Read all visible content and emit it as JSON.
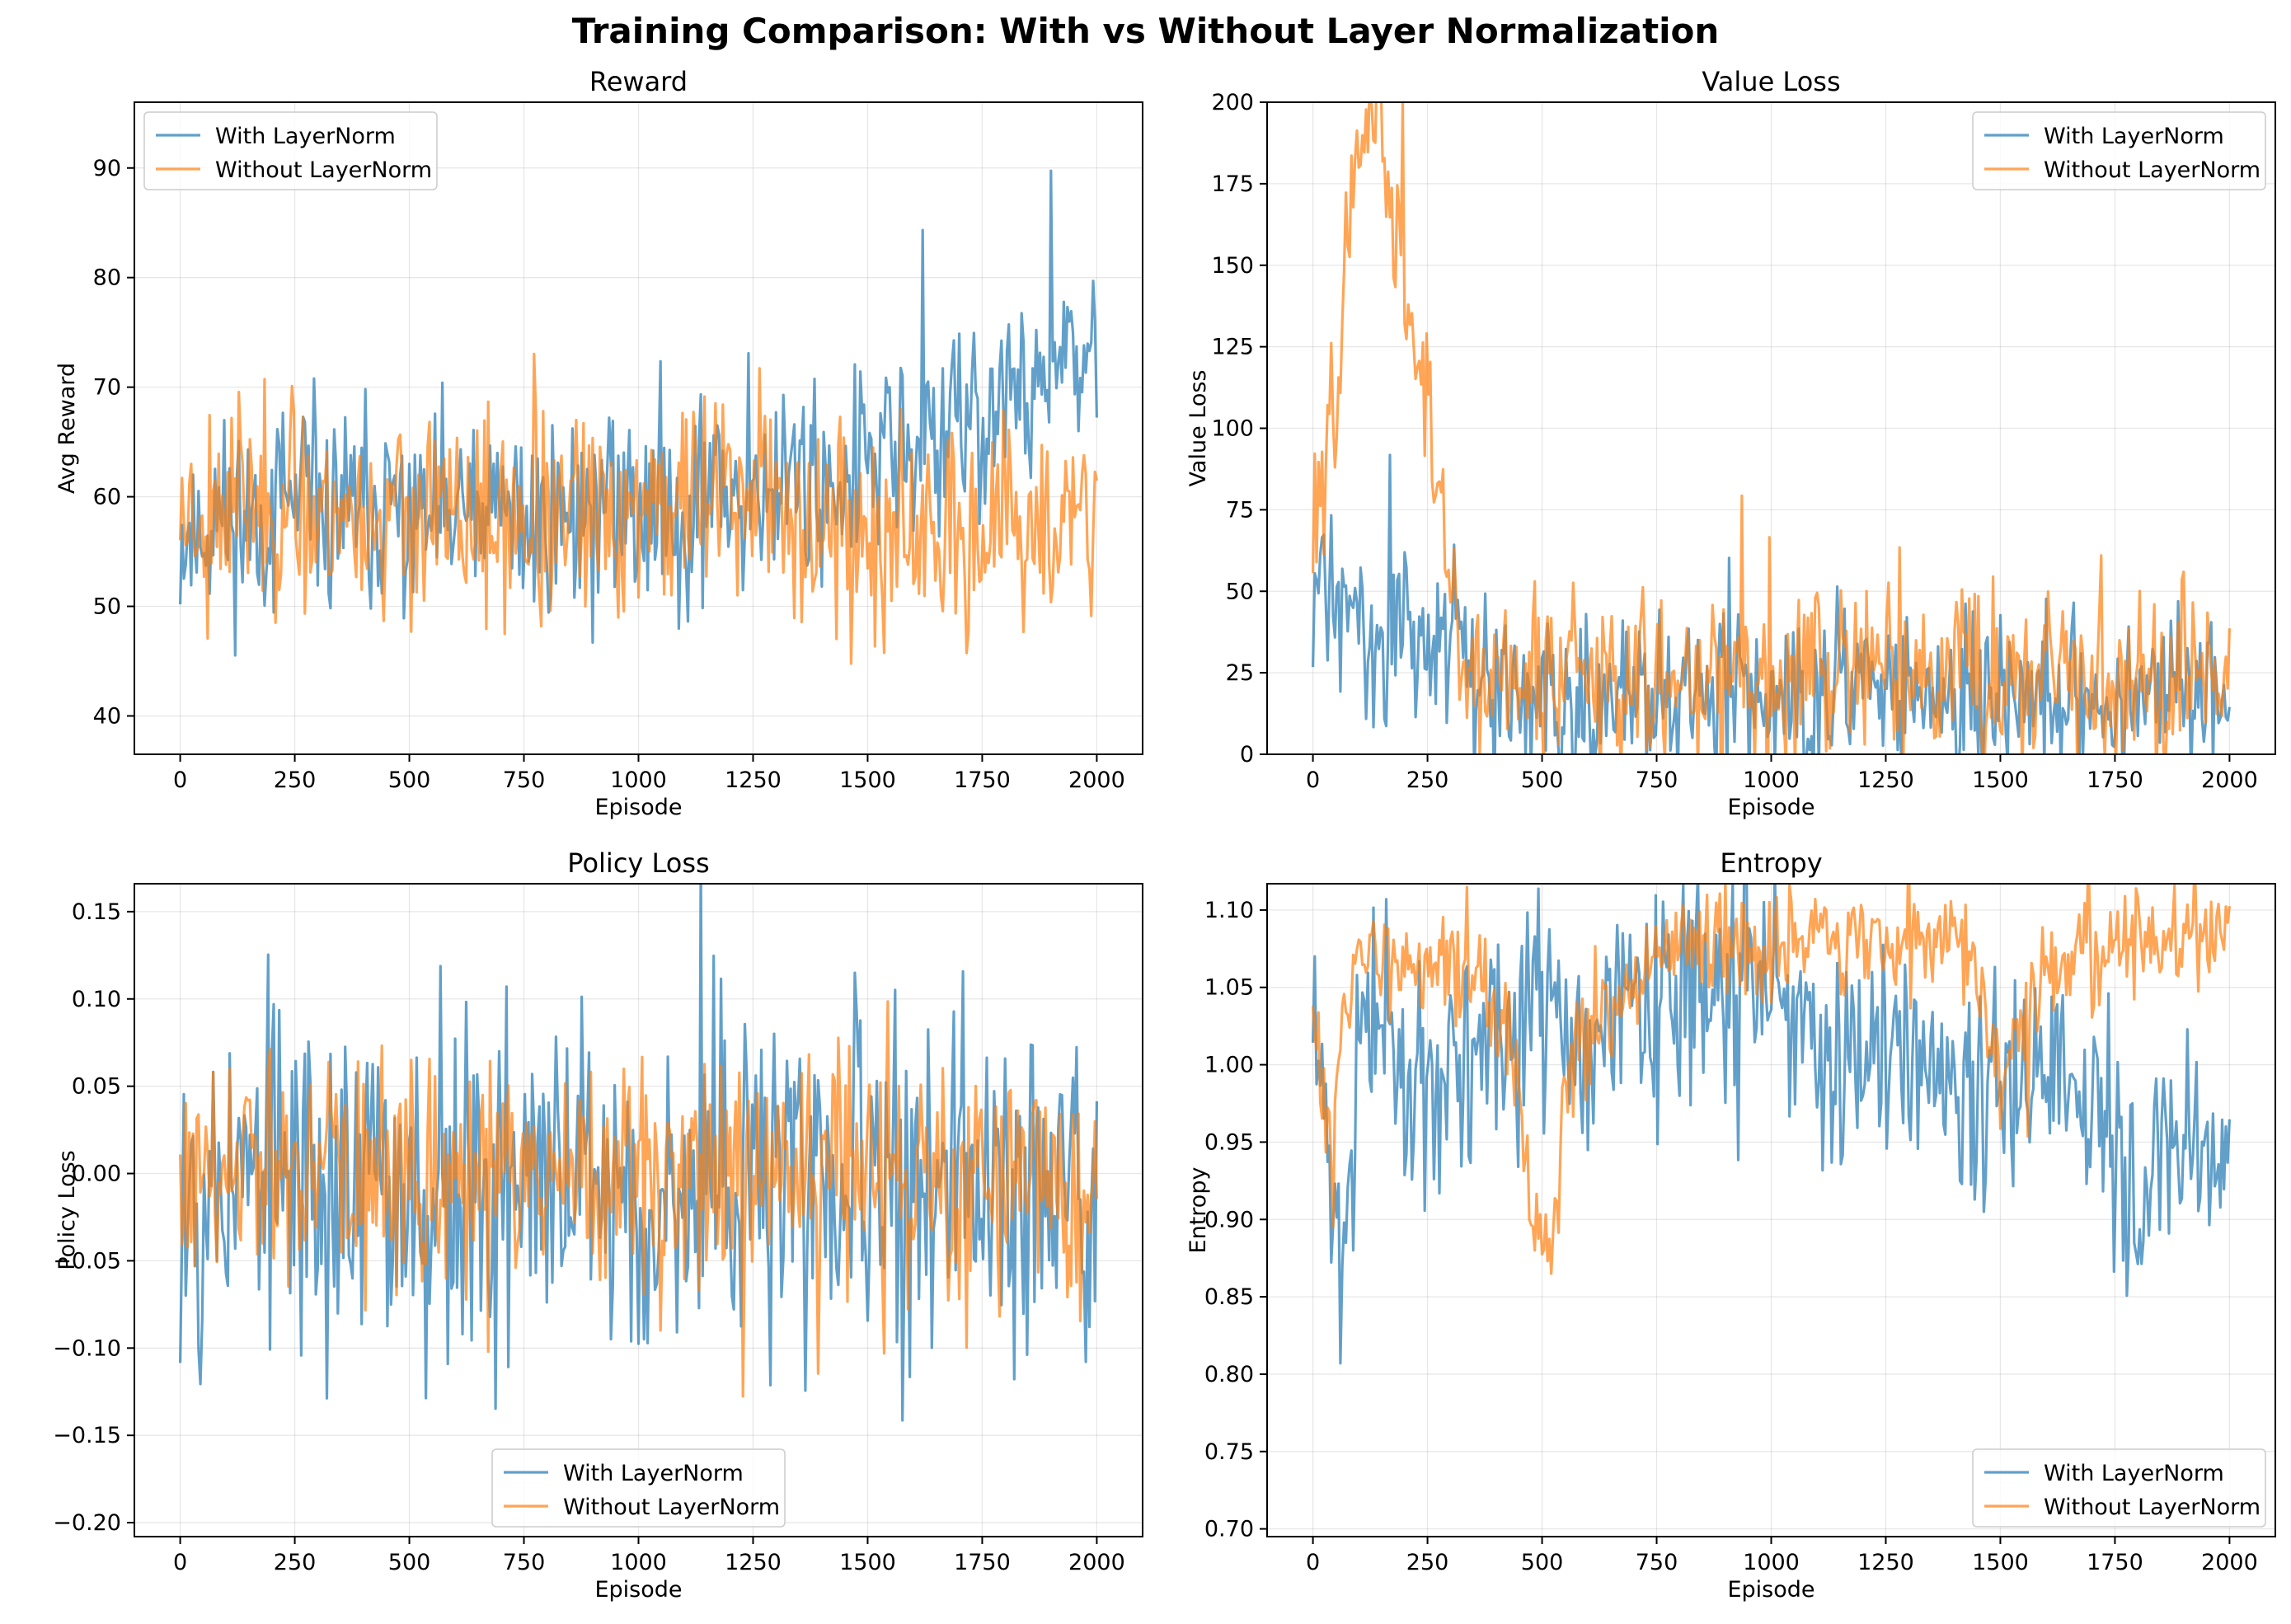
{
  "figure_title": "Training Comparison: With vs Without Layer Normalization",
  "colors": {
    "with_layernorm": "#1f77b4",
    "without_layernorm": "#ff7f0e",
    "grid": "#b0b0b0"
  },
  "chart_data": [
    {
      "type": "line",
      "title": "Reward",
      "xlabel": "Episode",
      "ylabel": "Avg Reward",
      "xlim": [
        -100,
        2100
      ],
      "ylim": [
        36.5,
        96
      ],
      "xticks": [
        0,
        250,
        500,
        750,
        1000,
        1250,
        1500,
        1750,
        2000
      ],
      "yticks": [
        40,
        50,
        60,
        70,
        80,
        90
      ],
      "ytick_labels": [
        "40",
        "50",
        "60",
        "70",
        "80",
        "90"
      ],
      "grid": true,
      "legend_position": "upper left",
      "series": [
        {
          "name": "With LayerNorm",
          "color": "#1f77b4",
          "noise": 8,
          "seed": 11,
          "x": [
            0,
            100,
            250,
            500,
            750,
            1000,
            1250,
            1400,
            1500,
            1600,
            1700,
            1800,
            1900,
            2000
          ],
          "y": [
            56,
            58,
            59,
            58,
            58,
            59,
            61,
            62,
            63,
            64,
            66,
            69,
            71,
            72
          ]
        },
        {
          "name": "Without LayerNorm",
          "color": "#ff7f0e",
          "noise": 8,
          "seed": 23,
          "x": [
            0,
            100,
            250,
            500,
            750,
            1000,
            1250,
            1350,
            1500,
            1750,
            2000
          ],
          "y": [
            59,
            60,
            59,
            58,
            57,
            59,
            61,
            58,
            56,
            56,
            57
          ]
        }
      ]
    },
    {
      "type": "line",
      "title": "Value Loss",
      "xlabel": "Episode",
      "ylabel": "Value Loss",
      "xlim": [
        -100,
        2100
      ],
      "ylim": [
        0,
        200
      ],
      "xticks": [
        0,
        250,
        500,
        750,
        1000,
        1250,
        1500,
        1750,
        2000
      ],
      "yticks": [
        0,
        25,
        50,
        75,
        100,
        125,
        150,
        175,
        200
      ],
      "ytick_labels": [
        "0",
        "25",
        "50",
        "75",
        "100",
        "125",
        "150",
        "175",
        "200"
      ],
      "grid": true,
      "legend_position": "upper right",
      "series": [
        {
          "name": "With LayerNorm",
          "color": "#1f77b4",
          "noise": 22,
          "seed": 31,
          "x": [
            0,
            50,
            100,
            200,
            320,
            330,
            500,
            750,
            1000,
            1250,
            1500,
            1750,
            2000
          ],
          "y": [
            55,
            45,
            40,
            36,
            34,
            20,
            18,
            18,
            19,
            19,
            19,
            19,
            19
          ]
        },
        {
          "name": "Without LayerNorm",
          "color": "#ff7f0e",
          "noise": 24,
          "seed": 47,
          "x": [
            0,
            30,
            60,
            100,
            130,
            330,
            500,
            750,
            1000,
            1250,
            1500,
            1750,
            2000
          ],
          "y": [
            75,
            85,
            130,
            190,
            210,
            25,
            24,
            25,
            25,
            25,
            25,
            25,
            25
          ]
        }
      ]
    },
    {
      "type": "line",
      "title": "Policy Loss",
      "xlabel": "Episode",
      "ylabel": "Policy Loss",
      "xlim": [
        -100,
        2100
      ],
      "ylim": [
        -0.208,
        0.166
      ],
      "xticks": [
        0,
        250,
        500,
        750,
        1000,
        1250,
        1500,
        1750,
        2000
      ],
      "yticks": [
        -0.2,
        -0.15,
        -0.1,
        -0.05,
        0,
        0.05,
        0.1,
        0.15
      ],
      "ytick_labels": [
        "−0.20",
        "−0.15",
        "−0.10",
        "−0.05",
        "0.00",
        "0.05",
        "0.10",
        "0.15"
      ],
      "grid": true,
      "legend_position": "lower center",
      "series": [
        {
          "name": "With LayerNorm",
          "color": "#1f77b4",
          "noise": 0.09,
          "seed": 53,
          "x": [
            0,
            250,
            500,
            750,
            1000,
            1250,
            1500,
            1750,
            2000
          ],
          "y": [
            0,
            -0.005,
            -0.008,
            -0.006,
            -0.007,
            -0.008,
            -0.008,
            -0.01,
            -0.01
          ]
        },
        {
          "name": "Without LayerNorm",
          "color": "#ff7f0e",
          "noise": 0.06,
          "seed": 61,
          "x": [
            0,
            250,
            500,
            750,
            1000,
            1250,
            1500,
            1750,
            2000
          ],
          "y": [
            0,
            0,
            -0.003,
            0,
            0,
            -0.002,
            -0.002,
            -0.003,
            -0.003
          ]
        }
      ]
    },
    {
      "type": "line",
      "title": "Entropy",
      "xlabel": "Episode",
      "ylabel": "Entropy",
      "xlim": [
        -100,
        2100
      ],
      "ylim": [
        0.695,
        1.117
      ],
      "xticks": [
        0,
        250,
        500,
        750,
        1000,
        1250,
        1500,
        1750,
        2000
      ],
      "yticks": [
        0.7,
        0.75,
        0.8,
        0.85,
        0.9,
        0.95,
        1.0,
        1.05,
        1.1
      ],
      "ytick_labels": [
        "0.70",
        "0.75",
        "0.80",
        "0.85",
        "0.90",
        "0.95",
        "1.00",
        "1.05",
        "1.10"
      ],
      "grid": true,
      "legend_position": "lower right",
      "series": [
        {
          "name": "With LayerNorm",
          "color": "#1f77b4",
          "noise": 0.06,
          "seed": 71,
          "x": [
            0,
            30,
            60,
            100,
            150,
            200,
            300,
            400,
            500,
            600,
            700,
            800,
            900,
            1000,
            1100,
            1200,
            1300,
            1400,
            1500,
            1600,
            1700,
            1800,
            1900,
            2000
          ],
          "y": [
            1.02,
            0.95,
            0.86,
            1.02,
            1.04,
            0.98,
            0.99,
            1.02,
            1.04,
            1.0,
            1.04,
            1.05,
            1.04,
            1.04,
            1.01,
            1.01,
            1.02,
            0.99,
            0.99,
            0.98,
            0.97,
            0.9,
            0.96,
            0.93
          ]
        },
        {
          "name": "Without LayerNorm",
          "color": "#ff7f0e",
          "noise": 0.03,
          "seed": 83,
          "x": [
            0,
            30,
            60,
            100,
            200,
            300,
            400,
            450,
            480,
            520,
            550,
            600,
            700,
            800,
            900,
            1000,
            1100,
            1200,
            1300,
            1400,
            1450,
            1500,
            1600,
            1700,
            1800,
            1900,
            2000
          ],
          "y": [
            1.03,
            0.95,
            1.02,
            1.06,
            1.07,
            1.07,
            1.04,
            0.98,
            0.9,
            0.88,
            0.98,
            1.02,
            1.05,
            1.07,
            1.08,
            1.07,
            1.08,
            1.085,
            1.08,
            1.08,
            1.06,
            1.0,
            1.06,
            1.075,
            1.08,
            1.08,
            1.085
          ]
        }
      ]
    }
  ]
}
